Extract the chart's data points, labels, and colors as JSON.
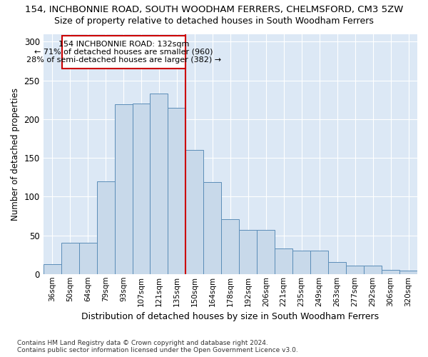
{
  "title": "154, INCHBONNIE ROAD, SOUTH WOODHAM FERRERS, CHELMSFORD, CM3 5ZW",
  "subtitle": "Size of property relative to detached houses in South Woodham Ferrers",
  "xlabel": "Distribution of detached houses by size in South Woodham Ferrers",
  "ylabel": "Number of detached properties",
  "categories": [
    "36sqm",
    "50sqm",
    "64sqm",
    "79sqm",
    "93sqm",
    "107sqm",
    "121sqm",
    "135sqm",
    "150sqm",
    "164sqm",
    "178sqm",
    "192sqm",
    "206sqm",
    "221sqm",
    "235sqm",
    "249sqm",
    "263sqm",
    "277sqm",
    "292sqm",
    "306sqm",
    "320sqm"
  ],
  "bar_heights": [
    13,
    40,
    40,
    120,
    219,
    220,
    233,
    215,
    160,
    119,
    71,
    57,
    57,
    33,
    30,
    30,
    15,
    11,
    11,
    5,
    4
  ],
  "bar_color": "#c8d9ea",
  "bar_edge_color": "#5b8db8",
  "vline_x": 7.5,
  "vline_color": "#cc0000",
  "annotation_line1": "154 INCHBONNIE ROAD: 132sqm",
  "annotation_line2": "← 71% of detached houses are smaller (960)",
  "annotation_line3": "28% of semi-detached houses are larger (382) →",
  "annotation_box_color": "#ffffff",
  "annotation_box_edge": "#cc0000",
  "ylim": [
    0,
    310
  ],
  "yticks": [
    0,
    50,
    100,
    150,
    200,
    250,
    300
  ],
  "footer1": "Contains HM Land Registry data © Crown copyright and database right 2024.",
  "footer2": "Contains public sector information licensed under the Open Government Licence v3.0.",
  "fig_bg_color": "#ffffff",
  "plot_bg_color": "#dce8f5",
  "title_fontsize": 9.5,
  "subtitle_fontsize": 9.0,
  "grid_color": "#ffffff"
}
